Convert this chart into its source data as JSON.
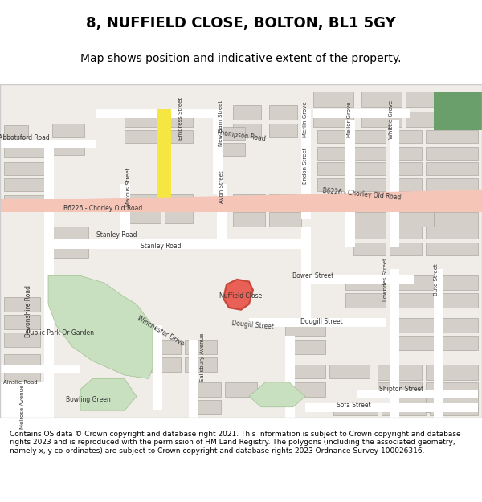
{
  "title_line1": "8, NUFFIELD CLOSE, BOLTON, BL1 5GY",
  "title_line2": "Map shows position and indicative extent of the property.",
  "footer_text": "Contains OS data © Crown copyright and database right 2021. This information is subject to Crown copyright and database rights 2023 and is reproduced with the permission of HM Land Registry. The polygons (including the associated geometry, namely x, y co-ordinates) are subject to Crown copyright and database rights 2023 Ordnance Survey 100026316.",
  "bg_color": "#f0ede8",
  "road_color": "#ffffff",
  "building_color": "#d4cfc8",
  "park_color": "#c8dfc0",
  "road_highlight": "#f5a623",
  "pink_road": "#f0b8b0",
  "title_bg": "#ffffff",
  "footer_bg": "#ffffff",
  "map_border": "#cccccc",
  "marker_color": "#e8483c",
  "marker_outline": "#c0392b"
}
